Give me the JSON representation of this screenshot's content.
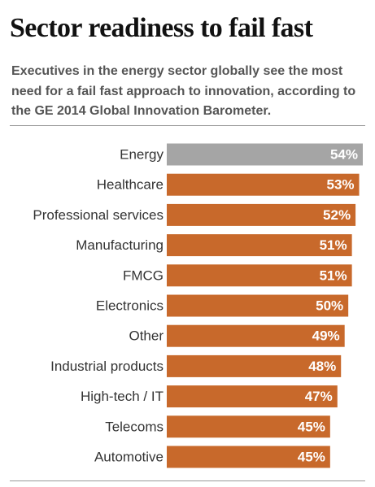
{
  "chart_data": {
    "type": "bar",
    "orientation": "horizontal",
    "title": "Sector readiness to fail fast",
    "subtitle": "Executives in the energy sector globally see the most need for a fail fast approach to innovation, according to the GE 2014 Global Innovation Barometer.",
    "categories": [
      "Energy",
      "Healthcare",
      "Professional services",
      "Manufacturing",
      "FMCG",
      "Electronics",
      "Other",
      "Industrial products",
      "High-tech / IT",
      "Telecoms",
      "Automotive"
    ],
    "values": [
      54,
      53,
      52,
      51,
      51,
      50,
      49,
      48,
      47,
      45,
      45
    ],
    "value_labels": [
      "54%",
      "53%",
      "52%",
      "51%",
      "51%",
      "50%",
      "49%",
      "48%",
      "47%",
      "45%",
      "45%"
    ],
    "colors": [
      "#a5a5a5",
      "#c8692b",
      "#c8692b",
      "#c8692b",
      "#c8692b",
      "#c8692b",
      "#c8692b",
      "#c8692b",
      "#c8692b",
      "#c8692b",
      "#c8692b"
    ]
  }
}
